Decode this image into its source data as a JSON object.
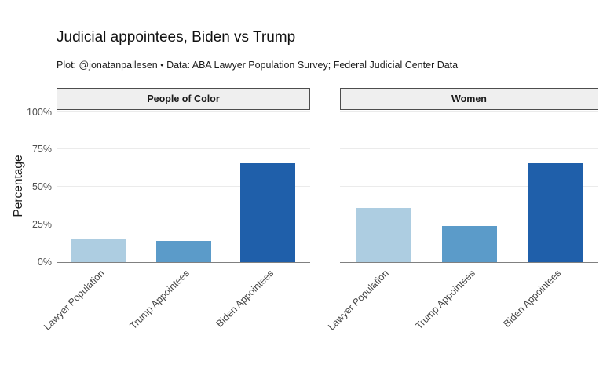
{
  "title": "Judicial appointees, Biden vs Trump",
  "subtitle": "Plot: @jonatanpallesen • Data: ABA Lawyer Population Survey; Federal Judicial Center Data",
  "chart_data": {
    "type": "bar",
    "title": "Judicial appointees, Biden vs Trump",
    "subtitle": "Plot: @jonatanpallesen • Data: ABA Lawyer Population Survey; Federal Judicial Center Data",
    "categories": [
      "Lawyer Population",
      "Trump Appointees",
      "Biden Appointees"
    ],
    "facets": [
      {
        "label": "People of Color",
        "values": [
          15,
          14,
          66
        ]
      },
      {
        "label": "Women",
        "values": [
          36,
          24,
          66
        ]
      }
    ],
    "xlabel": "",
    "ylabel": "Percentage",
    "ylim": [
      0,
      100
    ],
    "y_ticks": [
      "0%",
      "25%",
      "50%",
      "75%",
      "100%"
    ],
    "y_tick_values": [
      0,
      25,
      50,
      75,
      100
    ],
    "grid": "horizontal-major",
    "legend": "none",
    "bar_colors": [
      "#adcde1",
      "#5b9bc9",
      "#1f5faa"
    ]
  }
}
